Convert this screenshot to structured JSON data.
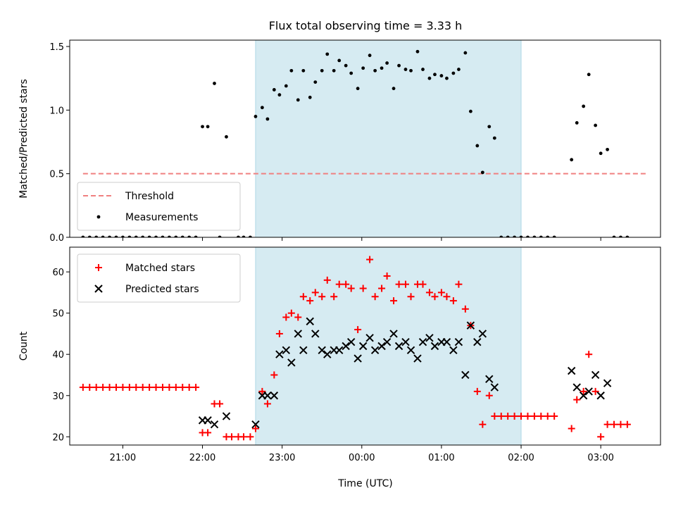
{
  "chart_data": [
    {
      "type": "scatter",
      "title": "Flux total observing time = 3.33 h",
      "xlabel": "",
      "ylabel": "Matched/Predicted stars",
      "x_tick_labels": [
        "21:00",
        "22:00",
        "23:00",
        "00:00",
        "01:00",
        "02:00",
        "03:00"
      ],
      "x_tick_times": [
        "21:00",
        "22:00",
        "23:00",
        "00:00",
        "01:00",
        "02:00",
        "03:00"
      ],
      "xlim": [
        "20:20",
        "03:45"
      ],
      "ylim": [
        0,
        1.55
      ],
      "y_ticks": [
        0.0,
        0.5,
        1.0,
        1.5
      ],
      "y_tick_labels": [
        "0.0",
        "0.5",
        "1.0",
        "1.5"
      ],
      "shaded_span": [
        "22:40",
        "02:00"
      ],
      "legend_position": "lower-left",
      "threshold": {
        "name": "Threshold",
        "value": 0.5,
        "x_start": "20:30",
        "x_end": "03:35",
        "color": "#f08080"
      },
      "series": [
        {
          "name": "Measurements",
          "color": "#000000",
          "points": [
            [
              "20:30",
              0
            ],
            [
              "20:35",
              0
            ],
            [
              "20:40",
              0
            ],
            [
              "20:45",
              0
            ],
            [
              "20:50",
              0
            ],
            [
              "20:55",
              0
            ],
            [
              "21:00",
              0
            ],
            [
              "21:05",
              0
            ],
            [
              "21:10",
              0
            ],
            [
              "21:15",
              0
            ],
            [
              "21:20",
              0
            ],
            [
              "21:25",
              0
            ],
            [
              "21:30",
              0
            ],
            [
              "21:35",
              0
            ],
            [
              "21:40",
              0
            ],
            [
              "21:45",
              0
            ],
            [
              "21:50",
              0
            ],
            [
              "21:55",
              0
            ],
            [
              "22:00",
              0.87
            ],
            [
              "22:04",
              0.87
            ],
            [
              "22:09",
              1.21
            ],
            [
              "22:13",
              0
            ],
            [
              "22:18",
              0.79
            ],
            [
              "22:27",
              0
            ],
            [
              "22:31",
              0
            ],
            [
              "22:36",
              0
            ],
            [
              "22:40",
              0.95
            ],
            [
              "22:45",
              1.02
            ],
            [
              "22:49",
              0.93
            ],
            [
              "22:54",
              1.16
            ],
            [
              "22:58",
              1.12
            ],
            [
              "23:03",
              1.19
            ],
            [
              "23:07",
              1.31
            ],
            [
              "23:12",
              1.08
            ],
            [
              "23:16",
              1.31
            ],
            [
              "23:21",
              1.1
            ],
            [
              "23:25",
              1.22
            ],
            [
              "23:30",
              1.31
            ],
            [
              "23:34",
              1.44
            ],
            [
              "23:39",
              1.31
            ],
            [
              "23:43",
              1.39
            ],
            [
              "23:48",
              1.35
            ],
            [
              "23:52",
              1.29
            ],
            [
              "23:57",
              1.17
            ],
            [
              "00:01",
              1.33
            ],
            [
              "00:06",
              1.43
            ],
            [
              "00:10",
              1.31
            ],
            [
              "00:15",
              1.33
            ],
            [
              "00:19",
              1.37
            ],
            [
              "00:24",
              1.17
            ],
            [
              "00:28",
              1.35
            ],
            [
              "00:33",
              1.32
            ],
            [
              "00:37",
              1.31
            ],
            [
              "00:42",
              1.46
            ],
            [
              "00:46",
              1.32
            ],
            [
              "00:51",
              1.25
            ],
            [
              "00:55",
              1.28
            ],
            [
              "01:00",
              1.27
            ],
            [
              "01:04",
              1.25
            ],
            [
              "01:09",
              1.29
            ],
            [
              "01:13",
              1.32
            ],
            [
              "01:18",
              1.45
            ],
            [
              "01:22",
              0.99
            ],
            [
              "01:27",
              0.72
            ],
            [
              "01:31",
              0.51
            ],
            [
              "01:36",
              0.87
            ],
            [
              "01:40",
              0.78
            ],
            [
              "01:45",
              0
            ],
            [
              "01:50",
              0
            ],
            [
              "01:55",
              0
            ],
            [
              "02:00",
              0
            ],
            [
              "02:05",
              0
            ],
            [
              "02:10",
              0
            ],
            [
              "02:15",
              0
            ],
            [
              "02:20",
              0
            ],
            [
              "02:25",
              0
            ],
            [
              "02:38",
              0.61
            ],
            [
              "02:42",
              0.9
            ],
            [
              "02:47",
              1.03
            ],
            [
              "02:51",
              1.28
            ],
            [
              "02:56",
              0.88
            ],
            [
              "03:00",
              0.66
            ],
            [
              "03:05",
              0.69
            ],
            [
              "03:10",
              0
            ],
            [
              "03:15",
              0
            ],
            [
              "03:20",
              0
            ]
          ]
        }
      ]
    },
    {
      "type": "scatter",
      "title": "",
      "xlabel": "Time (UTC)",
      "ylabel": "Count",
      "x_tick_labels": [
        "21:00",
        "22:00",
        "23:00",
        "00:00",
        "01:00",
        "02:00",
        "03:00"
      ],
      "x_tick_times": [
        "21:00",
        "22:00",
        "23:00",
        "00:00",
        "01:00",
        "02:00",
        "03:00"
      ],
      "xlim": [
        "20:20",
        "03:45"
      ],
      "ylim": [
        18,
        66
      ],
      "y_ticks": [
        20,
        30,
        40,
        50,
        60
      ],
      "y_tick_labels": [
        "20",
        "30",
        "40",
        "50",
        "60"
      ],
      "shaded_span": [
        "22:40",
        "02:00"
      ],
      "legend_position": "upper-left",
      "series": [
        {
          "name": "Matched stars",
          "marker": "plus",
          "color": "#ff0000",
          "points": [
            [
              "20:30",
              32
            ],
            [
              "20:35",
              32
            ],
            [
              "20:40",
              32
            ],
            [
              "20:45",
              32
            ],
            [
              "20:50",
              32
            ],
            [
              "20:55",
              32
            ],
            [
              "21:00",
              32
            ],
            [
              "21:05",
              32
            ],
            [
              "21:10",
              32
            ],
            [
              "21:15",
              32
            ],
            [
              "21:20",
              32
            ],
            [
              "21:25",
              32
            ],
            [
              "21:30",
              32
            ],
            [
              "21:35",
              32
            ],
            [
              "21:40",
              32
            ],
            [
              "21:45",
              32
            ],
            [
              "21:50",
              32
            ],
            [
              "21:55",
              32
            ],
            [
              "22:00",
              21
            ],
            [
              "22:04",
              21
            ],
            [
              "22:09",
              28
            ],
            [
              "22:13",
              28
            ],
            [
              "22:18",
              20
            ],
            [
              "22:22",
              20
            ],
            [
              "22:27",
              20
            ],
            [
              "22:31",
              20
            ],
            [
              "22:36",
              20
            ],
            [
              "22:40",
              22
            ],
            [
              "22:45",
              31
            ],
            [
              "22:49",
              28
            ],
            [
              "22:54",
              35
            ],
            [
              "22:58",
              45
            ],
            [
              "23:03",
              49
            ],
            [
              "23:07",
              50
            ],
            [
              "23:12",
              49
            ],
            [
              "23:16",
              54
            ],
            [
              "23:21",
              53
            ],
            [
              "23:25",
              55
            ],
            [
              "23:30",
              54
            ],
            [
              "23:34",
              58
            ],
            [
              "23:39",
              54
            ],
            [
              "23:43",
              57
            ],
            [
              "23:48",
              57
            ],
            [
              "23:52",
              56
            ],
            [
              "23:57",
              46
            ],
            [
              "00:01",
              56
            ],
            [
              "00:06",
              63
            ],
            [
              "00:10",
              54
            ],
            [
              "00:15",
              56
            ],
            [
              "00:19",
              59
            ],
            [
              "00:24",
              53
            ],
            [
              "00:28",
              57
            ],
            [
              "00:33",
              57
            ],
            [
              "00:37",
              54
            ],
            [
              "00:42",
              57
            ],
            [
              "00:46",
              57
            ],
            [
              "00:51",
              55
            ],
            [
              "00:55",
              54
            ],
            [
              "01:00",
              55
            ],
            [
              "01:04",
              54
            ],
            [
              "01:09",
              53
            ],
            [
              "01:13",
              57
            ],
            [
              "01:18",
              51
            ],
            [
              "01:22",
              47
            ],
            [
              "01:27",
              31
            ],
            [
              "01:31",
              23
            ],
            [
              "01:36",
              30
            ],
            [
              "01:40",
              25
            ],
            [
              "01:45",
              25
            ],
            [
              "01:50",
              25
            ],
            [
              "01:55",
              25
            ],
            [
              "02:00",
              25
            ],
            [
              "02:05",
              25
            ],
            [
              "02:10",
              25
            ],
            [
              "02:15",
              25
            ],
            [
              "02:20",
              25
            ],
            [
              "02:25",
              25
            ],
            [
              "02:38",
              22
            ],
            [
              "02:42",
              29
            ],
            [
              "02:47",
              31
            ],
            [
              "02:51",
              40
            ],
            [
              "02:56",
              31
            ],
            [
              "03:00",
              20
            ],
            [
              "03:05",
              23
            ],
            [
              "03:10",
              23
            ],
            [
              "03:15",
              23
            ],
            [
              "03:20",
              23
            ]
          ]
        },
        {
          "name": "Predicted stars",
          "marker": "x",
          "color": "#000000",
          "points": [
            [
              "22:00",
              24
            ],
            [
              "22:04",
              24
            ],
            [
              "22:09",
              23
            ],
            [
              "22:18",
              25
            ],
            [
              "22:40",
              23
            ],
            [
              "22:45",
              30
            ],
            [
              "22:49",
              30
            ],
            [
              "22:54",
              30
            ],
            [
              "22:58",
              40
            ],
            [
              "23:03",
              41
            ],
            [
              "23:07",
              38
            ],
            [
              "23:12",
              45
            ],
            [
              "23:16",
              41
            ],
            [
              "23:21",
              48
            ],
            [
              "23:25",
              45
            ],
            [
              "23:30",
              41
            ],
            [
              "23:34",
              40
            ],
            [
              "23:39",
              41
            ],
            [
              "23:43",
              41
            ],
            [
              "23:48",
              42
            ],
            [
              "23:52",
              43
            ],
            [
              "23:57",
              39
            ],
            [
              "00:01",
              42
            ],
            [
              "00:06",
              44
            ],
            [
              "00:10",
              41
            ],
            [
              "00:15",
              42
            ],
            [
              "00:19",
              43
            ],
            [
              "00:24",
              45
            ],
            [
              "00:28",
              42
            ],
            [
              "00:33",
              43
            ],
            [
              "00:37",
              41
            ],
            [
              "00:42",
              39
            ],
            [
              "00:46",
              43
            ],
            [
              "00:51",
              44
            ],
            [
              "00:55",
              42
            ],
            [
              "01:00",
              43
            ],
            [
              "01:04",
              43
            ],
            [
              "01:09",
              41
            ],
            [
              "01:13",
              43
            ],
            [
              "01:18",
              35
            ],
            [
              "01:22",
              47
            ],
            [
              "01:27",
              43
            ],
            [
              "01:31",
              45
            ],
            [
              "01:36",
              34
            ],
            [
              "01:40",
              32
            ],
            [
              "02:38",
              36
            ],
            [
              "02:42",
              32
            ],
            [
              "02:47",
              30
            ],
            [
              "02:51",
              31
            ],
            [
              "02:56",
              35
            ],
            [
              "03:00",
              30
            ],
            [
              "03:05",
              33
            ]
          ]
        }
      ]
    }
  ]
}
